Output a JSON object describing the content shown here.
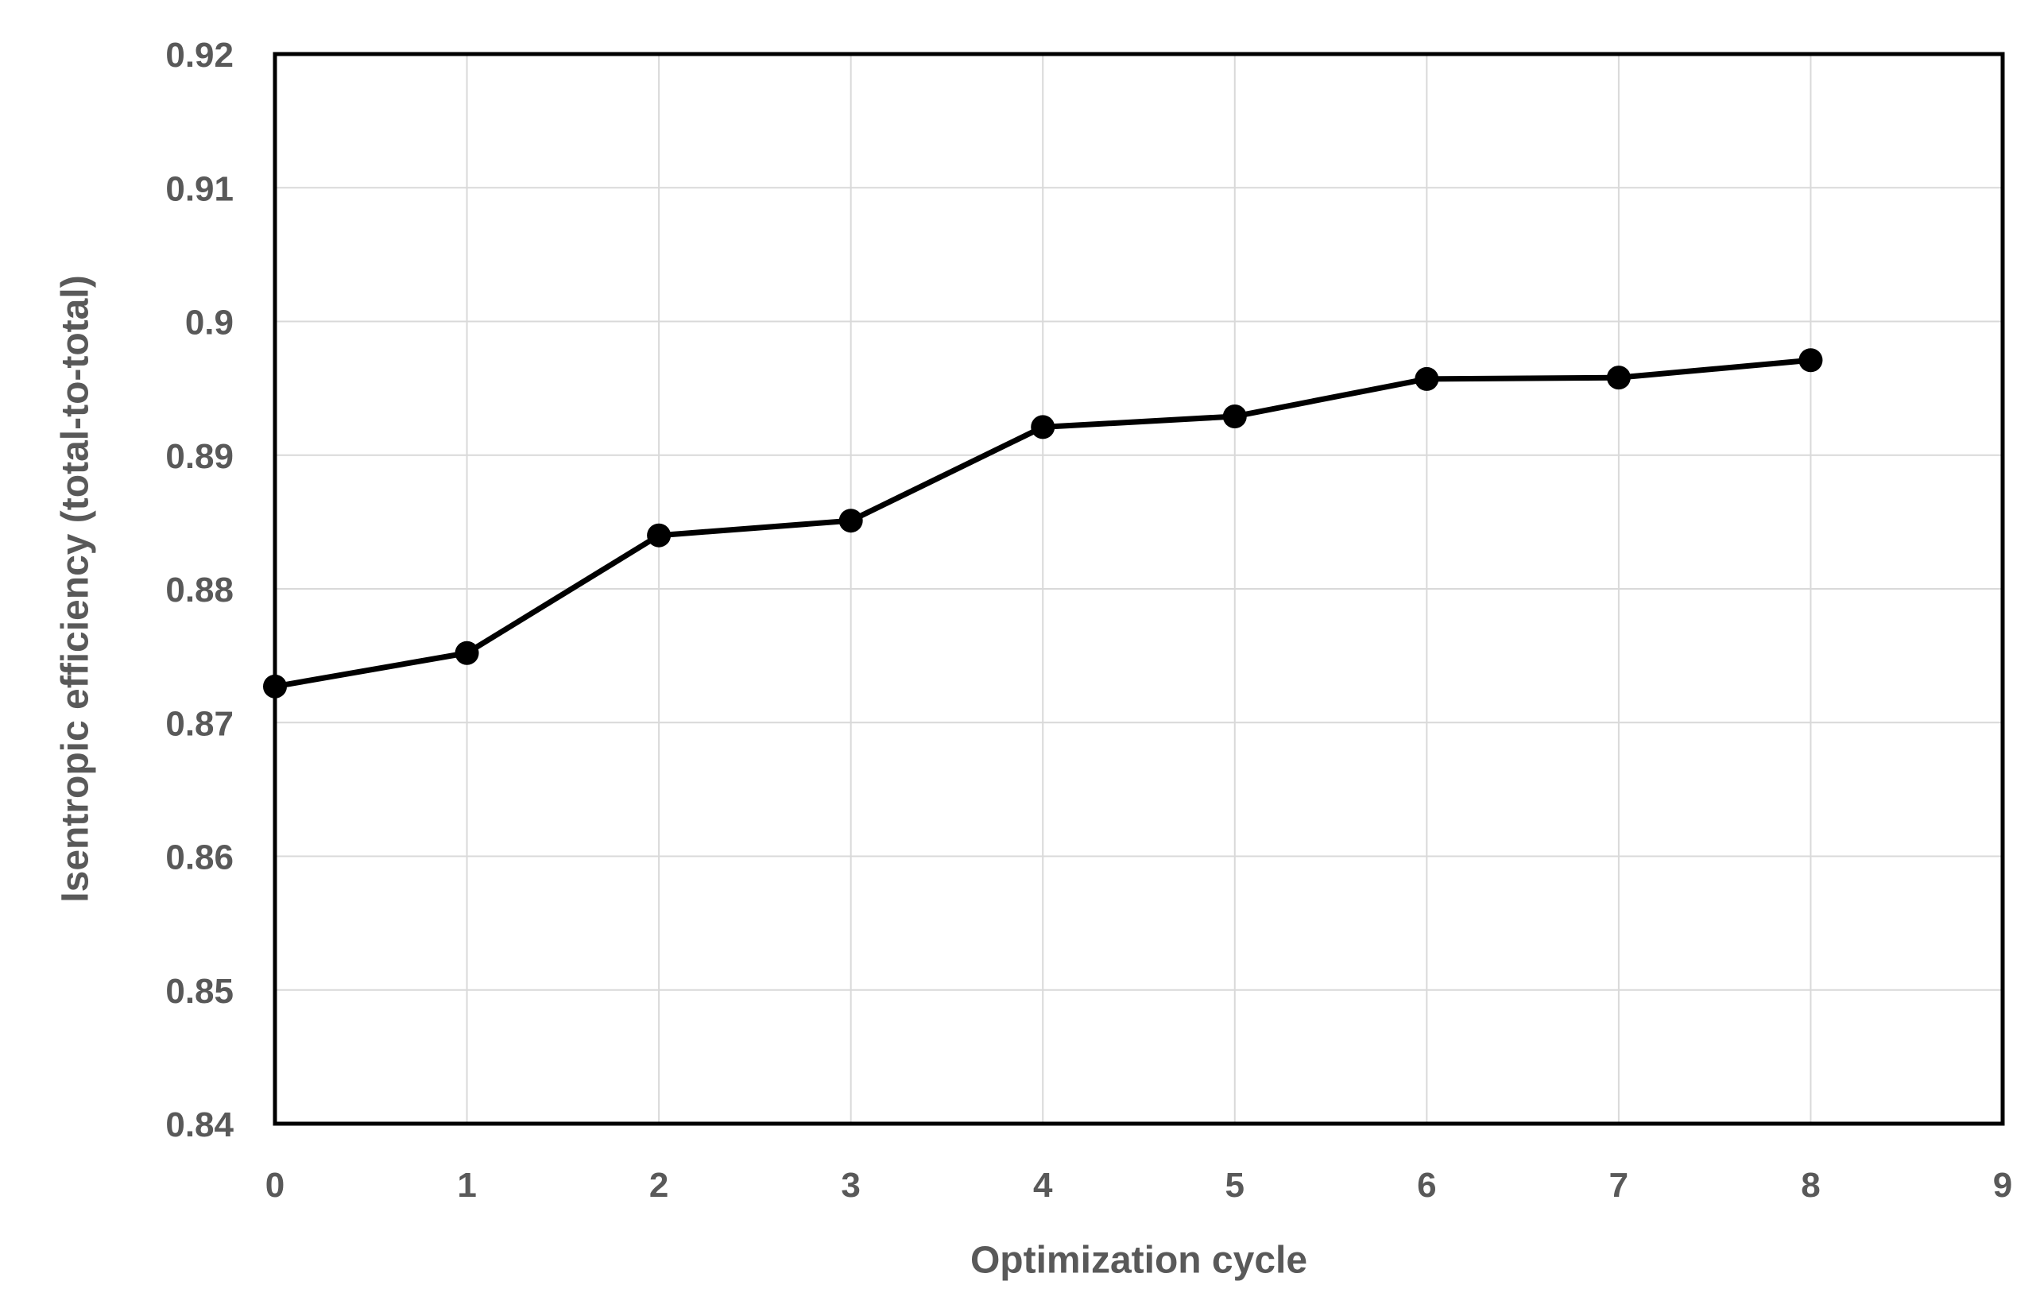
{
  "page": {
    "background": "#ffffff"
  },
  "chart_data": {
    "type": "line",
    "x": [
      0,
      1,
      2,
      3,
      4,
      5,
      6,
      7,
      8
    ],
    "values": [
      0.8727,
      0.8752,
      0.884,
      0.8851,
      0.8921,
      0.8929,
      0.8957,
      0.8958,
      0.8971
    ],
    "series": [
      {
        "name": "Isentropic efficiency",
        "values": [
          0.8727,
          0.8752,
          0.884,
          0.8851,
          0.8921,
          0.8929,
          0.8957,
          0.8958,
          0.8971
        ]
      }
    ],
    "title": "",
    "xlabel": "Optimization cycle",
    "ylabel": "Isentropic efficiency (total-to-total)",
    "xlim": [
      0,
      9
    ],
    "ylim": [
      0.84,
      0.92
    ],
    "x_ticks": [
      {
        "v": 0,
        "label": "0"
      },
      {
        "v": 1,
        "label": "1"
      },
      {
        "v": 2,
        "label": "2"
      },
      {
        "v": 3,
        "label": "3"
      },
      {
        "v": 4,
        "label": "4"
      },
      {
        "v": 5,
        "label": "5"
      },
      {
        "v": 6,
        "label": "6"
      },
      {
        "v": 7,
        "label": "7"
      },
      {
        "v": 8,
        "label": "8"
      },
      {
        "v": 9,
        "label": "9"
      }
    ],
    "y_ticks": [
      {
        "v": 0.84,
        "label": "0.84"
      },
      {
        "v": 0.85,
        "label": "0.85"
      },
      {
        "v": 0.86,
        "label": "0.86"
      },
      {
        "v": 0.87,
        "label": "0.87"
      },
      {
        "v": 0.88,
        "label": "0.88"
      },
      {
        "v": 0.89,
        "label": "0.89"
      },
      {
        "v": 0.9,
        "label": "0.9"
      },
      {
        "v": 0.91,
        "label": "0.91"
      },
      {
        "v": 0.92,
        "label": "0.92"
      }
    ],
    "grid": true,
    "legend_visible": false,
    "marker": "circle",
    "colors": {
      "line": "#000000",
      "marker": "#000000",
      "grid": "#d9d9d9",
      "border": "#000000",
      "text": "#595959"
    }
  }
}
